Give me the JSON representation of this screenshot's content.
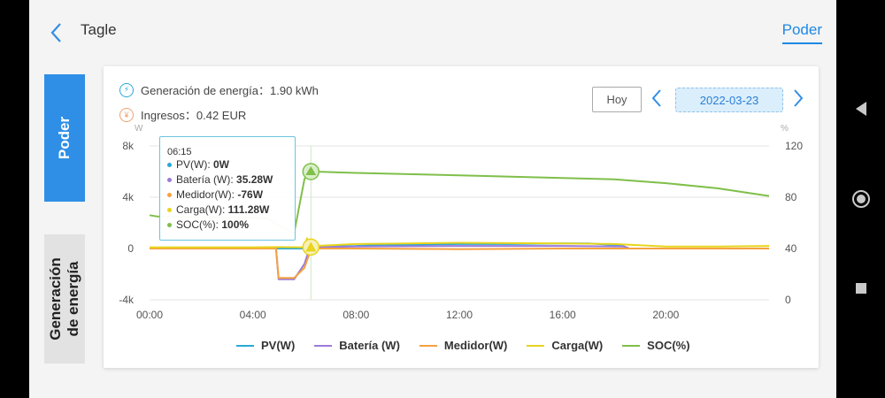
{
  "header": {
    "title": "Tagle",
    "active_tab": "Poder"
  },
  "sidebar": {
    "tab_active": "Poder",
    "tab_inactive": "Generación de energía"
  },
  "summary": {
    "generation_label": "Generación de energía",
    "generation_value": "1.90 kWh",
    "income_label": "Ingresos",
    "income_value": "0.42 EUR"
  },
  "controls": {
    "today_label": "Hoy",
    "date": "2022-03-23"
  },
  "tooltip": {
    "time": "06:15",
    "rows": [
      {
        "label": "PV(W)",
        "value": "0W",
        "color": "#29a9d6"
      },
      {
        "label": "Batería (W)",
        "value": "35.28W",
        "color": "#9c7ad8"
      },
      {
        "label": "Medidor(W)",
        "value": "-76W",
        "color": "#f5a142"
      },
      {
        "label": "Carga(W)",
        "value": "111.28W",
        "color": "#e8d51c"
      },
      {
        "label": "SOC(%)",
        "value": "100%",
        "color": "#7fbf4a"
      }
    ]
  },
  "colors": {
    "pv": "#29a9d6",
    "battery": "#9c7ad8",
    "meter": "#f5a142",
    "load": "#e8d51c",
    "soc": "#7fbf4a",
    "accent": "#1e88e5"
  },
  "chart_data": {
    "type": "line",
    "left_unit": "W",
    "right_unit": "%",
    "x_ticks": [
      "00:00",
      "04:00",
      "08:00",
      "12:00",
      "16:00",
      "20:00"
    ],
    "y_left_ticks": [
      "8k",
      "4k",
      "0",
      "-4k"
    ],
    "y_right_ticks": [
      "120",
      "80",
      "40",
      "0"
    ],
    "ylim_left": [
      -4000,
      8000
    ],
    "ylim_right": [
      0,
      120
    ],
    "xlim_hours": [
      0,
      24
    ],
    "series": [
      {
        "name": "PV(W)",
        "axis": "left",
        "key": "pv",
        "x": [
          0,
          4.9,
          5.0,
          6.2,
          6.3,
          8,
          9,
          10,
          12,
          14,
          16,
          17,
          18.3,
          18.5,
          20,
          24
        ],
        "y": [
          0,
          0,
          0,
          0,
          150,
          200,
          300,
          300,
          350,
          350,
          400,
          400,
          250,
          0,
          0,
          0
        ]
      },
      {
        "name": "Batería (W)",
        "axis": "left",
        "key": "battery",
        "x": [
          0,
          4.9,
          5.0,
          5.6,
          5.8,
          6.0,
          6.2,
          6.4,
          8,
          12,
          16,
          18.4,
          18.6,
          20,
          24
        ],
        "y": [
          0,
          0,
          -2400,
          -2400,
          -1800,
          -1200,
          35,
          100,
          150,
          200,
          200,
          150,
          0,
          0,
          0
        ]
      },
      {
        "name": "Medidor(W)",
        "axis": "left",
        "key": "meter",
        "x": [
          0,
          4.9,
          5.0,
          5.6,
          6.0,
          6.25,
          6.5,
          8,
          12,
          16,
          20,
          24
        ],
        "y": [
          0,
          0,
          -2300,
          -2300,
          -1500,
          -76,
          0,
          0,
          -50,
          0,
          0,
          0
        ]
      },
      {
        "name": "Carga(W)",
        "axis": "left",
        "key": "load",
        "x": [
          0,
          4,
          5,
          6,
          6.1,
          6.25,
          6.4,
          8,
          10,
          12,
          14,
          16,
          18,
          20,
          22,
          24
        ],
        "y": [
          100,
          100,
          110,
          100,
          800,
          111,
          200,
          350,
          400,
          450,
          420,
          400,
          350,
          150,
          150,
          200
        ]
      },
      {
        "name": "SOC(%)",
        "axis": "right",
        "key": "soc",
        "x": [
          0,
          0.3,
          4.5,
          5.0,
          5.6,
          6.0,
          6.2,
          6.4,
          8,
          12,
          16,
          18,
          20,
          22,
          24
        ],
        "y": [
          66,
          65,
          64,
          58,
          52,
          94,
          100,
          100,
          99,
          97,
          95,
          94,
          91,
          87,
          81
        ]
      }
    ],
    "marker_time": 6.25
  }
}
